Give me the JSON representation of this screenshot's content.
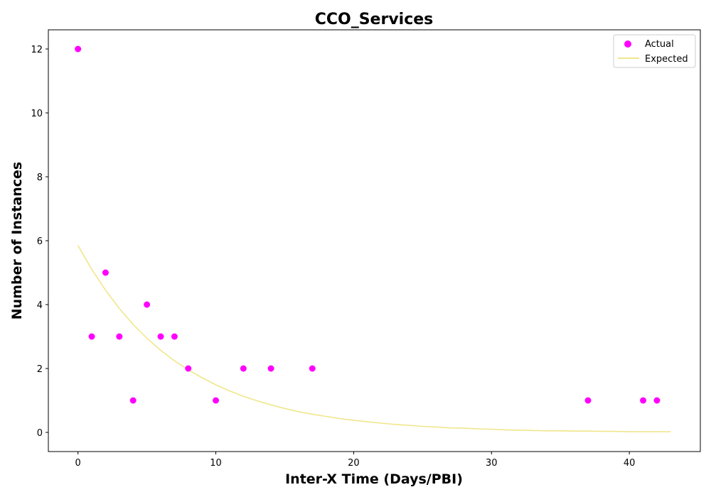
{
  "chart_data": {
    "type": "scatter",
    "title": "CCO_Services",
    "xlabel": "Inter-X Time (Days/PBI)",
    "ylabel": "Number of Instances",
    "xlim": [
      -2.15,
      45.15
    ],
    "ylim": [
      -0.6,
      12.6
    ],
    "xticks": [
      0,
      10,
      20,
      30,
      40
    ],
    "yticks": [
      0,
      2,
      4,
      6,
      8,
      10,
      12
    ],
    "grid": false,
    "legend_position": "top-right",
    "series": [
      {
        "name": "Actual",
        "kind": "scatter",
        "color": "#ff00ff",
        "x": [
          0,
          1,
          2,
          3,
          4,
          5,
          6,
          7,
          8,
          10,
          12,
          14,
          17,
          37,
          41,
          42
        ],
        "y": [
          12,
          3,
          5,
          3,
          1,
          4,
          3,
          3,
          2,
          1,
          2,
          2,
          2,
          1,
          1,
          1
        ]
      },
      {
        "name": "Expected",
        "kind": "line",
        "color": "#f0e68c",
        "x": [
          0,
          1,
          2,
          3,
          4,
          5,
          6,
          7,
          8,
          9,
          10,
          11,
          12,
          13,
          14,
          15,
          16,
          17,
          18,
          19,
          20,
          21,
          22,
          23,
          24,
          25,
          26,
          27,
          28,
          29,
          30,
          31,
          32,
          33,
          34,
          35,
          36,
          37,
          38,
          39,
          40,
          41,
          42,
          43
        ],
        "y": [
          5.85,
          5.1,
          4.45,
          3.88,
          3.38,
          2.95,
          2.57,
          2.24,
          1.96,
          1.71,
          1.49,
          1.3,
          1.13,
          0.99,
          0.86,
          0.75,
          0.65,
          0.57,
          0.5,
          0.43,
          0.38,
          0.33,
          0.29,
          0.25,
          0.22,
          0.19,
          0.17,
          0.14,
          0.13,
          0.11,
          0.1,
          0.08,
          0.07,
          0.06,
          0.05,
          0.05,
          0.04,
          0.04,
          0.03,
          0.03,
          0.02,
          0.02,
          0.02,
          0.02
        ]
      }
    ]
  }
}
